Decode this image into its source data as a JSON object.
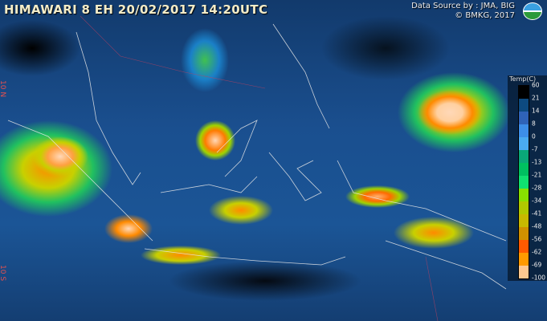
{
  "header": {
    "title": "HIMAWARI 8 EH  20/02/2017 14:20UTC"
  },
  "credits": {
    "source": "Data Source by : JMA, BIG",
    "copyright": "© BMKG, 2017",
    "logo_text": "BMKG"
  },
  "latitude_labels": [
    "10 N",
    "10 S"
  ],
  "legend": {
    "title": "Temp(C)",
    "labels": [
      "60",
      "21",
      "14",
      "8",
      "0",
      "-7",
      "-13",
      "-21",
      "-28",
      "-34",
      "-41",
      "-48",
      "-56",
      "-62",
      "-69",
      "-100"
    ],
    "colors": [
      "#000000",
      "#0d4a80",
      "#2f63b8",
      "#3d8ee8",
      "#4aaaf0",
      "#0aa878",
      "#00c060",
      "#10e070",
      "#88e000",
      "#b0c800",
      "#c8b800",
      "#d09000",
      "#ff5a00",
      "#ff9a00",
      "#ffc890",
      "#ffdcc0"
    ]
  }
}
